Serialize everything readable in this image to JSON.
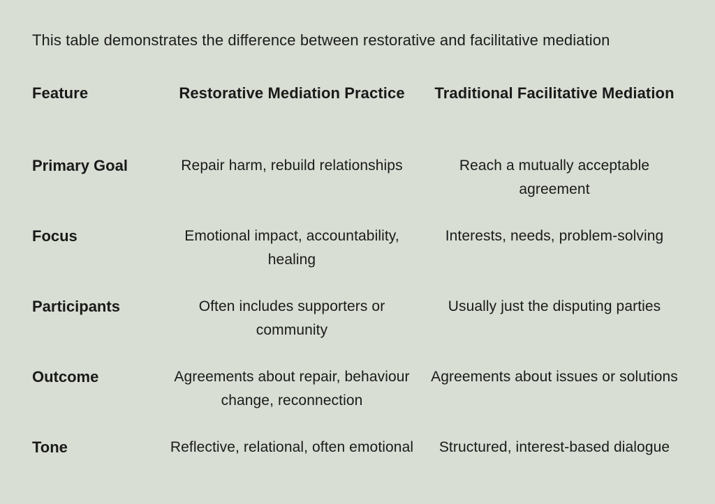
{
  "page": {
    "background_color": "#d8ded3",
    "text_color": "#1a1a1a"
  },
  "title": "This table demonstrates the difference between restorative and facilitative mediation",
  "table": {
    "headers": {
      "feature": "Feature",
      "restorative": "Restorative Mediation Practice",
      "facilitative": "Traditional Facilitative Mediation"
    },
    "rows": [
      {
        "feature": "Primary Goal",
        "restorative": "Repair harm, rebuild relationships",
        "facilitative": "Reach a mutually acceptable agreement"
      },
      {
        "feature": "Focus",
        "restorative": "Emotional impact, accountability, healing",
        "facilitative": "Interests, needs, problem-solving"
      },
      {
        "feature": "Participants",
        "restorative": "Often includes supporters or community",
        "facilitative": "Usually just the disputing parties"
      },
      {
        "feature": "Outcome",
        "restorative": "Agreements about repair, behaviour change, reconnection",
        "facilitative": "Agreements about issues or solutions"
      },
      {
        "feature": "Tone",
        "restorative": "Reflective, relational, often emotional",
        "facilitative": "Structured, interest-based dialogue"
      }
    ]
  }
}
